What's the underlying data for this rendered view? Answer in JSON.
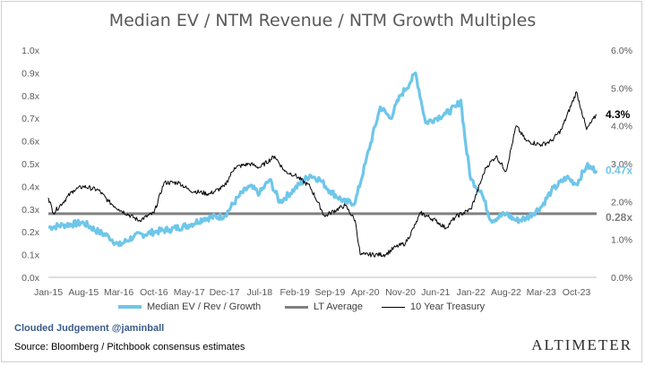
{
  "chart_data": {
    "type": "line",
    "title": "Median EV / NTM Revenue / NTM Growth Multiples",
    "x_ticks": [
      "Jan-15",
      "Aug-15",
      "Mar-16",
      "Oct-16",
      "May-17",
      "Dec-17",
      "Jul-18",
      "Feb-19",
      "Sep-19",
      "Apr-20",
      "Nov-20",
      "Jun-21",
      "Jan-22",
      "Aug-22",
      "Mar-23",
      "Oct-23"
    ],
    "y_left": {
      "ticks": [
        "0.0x",
        "0.1x",
        "0.2x",
        "0.3x",
        "0.4x",
        "0.5x",
        "0.6x",
        "0.7x",
        "0.8x",
        "0.9x",
        "1.0x"
      ],
      "range": [
        0,
        1.0
      ]
    },
    "y_right": {
      "ticks": [
        "0.0%",
        "1.0%",
        "2.0%",
        "3.0%",
        "4.0%",
        "5.0%",
        "6.0%"
      ],
      "range": [
        0,
        6.0
      ]
    },
    "series": [
      {
        "name": "Median EV / Rev / Growth",
        "color": "#6ec6ea",
        "axis": "left",
        "points": [
          [
            "Jan-15",
            0.22
          ],
          [
            "Apr-15",
            0.23
          ],
          [
            "Aug-15",
            0.24
          ],
          [
            "Nov-15",
            0.2
          ],
          [
            "Jan-16",
            0.18
          ],
          [
            "Mar-16",
            0.14
          ],
          [
            "Jun-16",
            0.18
          ],
          [
            "Oct-16",
            0.2
          ],
          [
            "Jan-17",
            0.21
          ],
          [
            "May-17",
            0.23
          ],
          [
            "Aug-17",
            0.26
          ],
          [
            "Dec-17",
            0.27
          ],
          [
            "Mar-18",
            0.36
          ],
          [
            "May-18",
            0.4
          ],
          [
            "Jul-18",
            0.37
          ],
          [
            "Sep-18",
            0.43
          ],
          [
            "Nov-18",
            0.33
          ],
          [
            "Feb-19",
            0.39
          ],
          [
            "May-19",
            0.45
          ],
          [
            "Jul-19",
            0.43
          ],
          [
            "Sep-19",
            0.38
          ],
          [
            "Dec-19",
            0.33
          ],
          [
            "Feb-20",
            0.33
          ],
          [
            "Apr-20",
            0.5
          ],
          [
            "Jul-20",
            0.75
          ],
          [
            "Sep-20",
            0.7
          ],
          [
            "Nov-20",
            0.8
          ],
          [
            "Jan-21",
            0.86
          ],
          [
            "Feb-21",
            0.9
          ],
          [
            "Apr-21",
            0.68
          ],
          [
            "Jun-21",
            0.7
          ],
          [
            "Aug-21",
            0.72
          ],
          [
            "Oct-21",
            0.75
          ],
          [
            "Nov-21",
            0.78
          ],
          [
            "Dec-21",
            0.58
          ],
          [
            "Jan-22",
            0.43
          ],
          [
            "Mar-22",
            0.38
          ],
          [
            "May-22",
            0.25
          ],
          [
            "Aug-22",
            0.28
          ],
          [
            "Oct-22",
            0.25
          ],
          [
            "Dec-22",
            0.26
          ],
          [
            "Mar-23",
            0.31
          ],
          [
            "May-23",
            0.38
          ],
          [
            "Aug-23",
            0.44
          ],
          [
            "Oct-23",
            0.41
          ],
          [
            "Dec-23",
            0.49
          ],
          [
            "Feb-24",
            0.47
          ]
        ],
        "end_label": "0.47x"
      },
      {
        "name": "LT Average",
        "color": "#808080",
        "axis": "left",
        "value": 0.28,
        "end_label": "0.28x"
      },
      {
        "name": "10 Year Treasury",
        "color": "#000000",
        "axis": "right",
        "points": [
          [
            "Jan-15",
            2.1
          ],
          [
            "Feb-15",
            1.7
          ],
          [
            "Jun-15",
            2.3
          ],
          [
            "Aug-15",
            2.4
          ],
          [
            "Nov-15",
            2.3
          ],
          [
            "Jan-16",
            2.0
          ],
          [
            "Mar-16",
            1.8
          ],
          [
            "Jul-16",
            1.5
          ],
          [
            "Oct-16",
            1.7
          ],
          [
            "Dec-16",
            2.5
          ],
          [
            "Mar-17",
            2.5
          ],
          [
            "May-17",
            2.3
          ],
          [
            "Sep-17",
            2.2
          ],
          [
            "Dec-17",
            2.4
          ],
          [
            "Feb-18",
            2.9
          ],
          [
            "May-18",
            3.0
          ],
          [
            "Jul-18",
            2.9
          ],
          [
            "Oct-18",
            3.2
          ],
          [
            "Dec-18",
            2.8
          ],
          [
            "Feb-19",
            2.7
          ],
          [
            "May-19",
            2.4
          ],
          [
            "Aug-19",
            1.6
          ],
          [
            "Sep-19",
            1.7
          ],
          [
            "Dec-19",
            1.9
          ],
          [
            "Feb-20",
            1.5
          ],
          [
            "Mar-20",
            0.6
          ],
          [
            "Apr-20",
            0.6
          ],
          [
            "Aug-20",
            0.6
          ],
          [
            "Oct-20",
            0.8
          ],
          [
            "Dec-20",
            0.9
          ],
          [
            "Feb-21",
            1.4
          ],
          [
            "Mar-21",
            1.7
          ],
          [
            "Jun-21",
            1.5
          ],
          [
            "Aug-21",
            1.3
          ],
          [
            "Oct-21",
            1.6
          ],
          [
            "Jan-22",
            1.8
          ],
          [
            "Apr-22",
            2.9
          ],
          [
            "Jun-22",
            3.2
          ],
          [
            "Aug-22",
            2.8
          ],
          [
            "Oct-22",
            4.0
          ],
          [
            "Dec-22",
            3.6
          ],
          [
            "Mar-23",
            3.5
          ],
          [
            "May-23",
            3.6
          ],
          [
            "Jul-23",
            3.9
          ],
          [
            "Oct-23",
            4.9
          ],
          [
            "Nov-23",
            4.4
          ],
          [
            "Dec-23",
            3.9
          ],
          [
            "Feb-24",
            4.3
          ]
        ],
        "end_label": "4.3%"
      }
    ],
    "legend": [
      "Median EV / Rev / Growth",
      "LT Average",
      "10 Year Treasury"
    ],
    "legend_position": "bottom",
    "grid": false
  },
  "footer": {
    "credit": "Clouded Judgement @jaminball",
    "source": "Source: Bloomberg / Pitchbook consensus estimates",
    "brand": "ALTIMETER"
  }
}
